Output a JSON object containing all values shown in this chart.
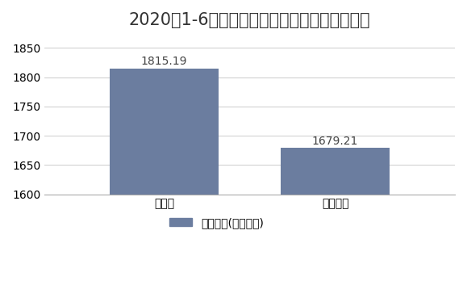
{
  "title": "2020年1-6月湖北省商品房和商品住宅销售面积",
  "categories": [
    "商品房",
    "商品住宅"
  ],
  "values": [
    1815.19,
    1679.21
  ],
  "bar_color": "#6b7d9f",
  "ylim_min": 1600,
  "ylim_max": 1870,
  "yticks": [
    1600,
    1650,
    1700,
    1750,
    1800,
    1850
  ],
  "legend_label": "销售面积(万平方米)",
  "background_color": "#ffffff",
  "grid_color": "#cccccc",
  "title_fontsize": 15,
  "label_fontsize": 10,
  "tick_fontsize": 10,
  "legend_fontsize": 10,
  "bar_width": 0.32,
  "x_positions": [
    0.25,
    0.75
  ]
}
